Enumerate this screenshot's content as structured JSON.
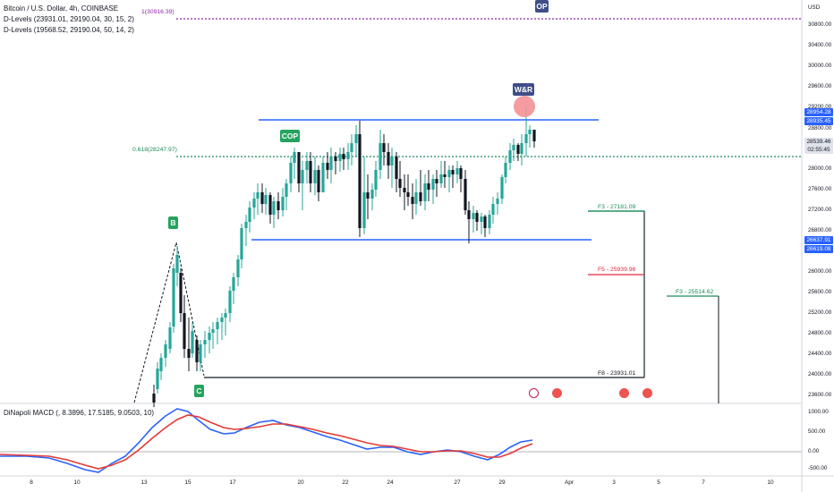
{
  "header": {
    "symbol": "Bitcoin / U.S. Dollar, 4h, COINBASE",
    "indicators": [
      "D-Levels (23931.01, 29190.04, 30, 15, 2)",
      "D-Levels (19568.52, 29190.04, 50, 14, 2)"
    ],
    "macd_label": "DiNapoli MACD (, 8.3896, 17.5185, 9.0503, 10)"
  },
  "axis": {
    "currency": "USD",
    "price_ticks": [
      "30800.00",
      "30400.00",
      "30000.00",
      "29600.00",
      "29200.00",
      "28800.00",
      "28000.00",
      "27600.00",
      "27200.00",
      "26800.00",
      "26000.00",
      "25600.00",
      "25200.00",
      "24800.00",
      "24400.00",
      "24000.00",
      "23600.00"
    ],
    "macd_ticks": [
      "1000.00",
      "500.00",
      "0.00",
      "-500.00"
    ],
    "time_ticks": [
      "8",
      "10",
      "13",
      "15",
      "17",
      "20",
      "22",
      "24",
      "27",
      "29",
      "Apr",
      "3",
      "5",
      "7",
      "10"
    ]
  },
  "price_labels": {
    "upper_1": "28954.28",
    "upper_2": "28935.45",
    "current": "28539.46",
    "countdown": "02:55:45",
    "lower_1": "26637.91",
    "lower_2": "26619.08"
  },
  "levels": {
    "op_label": "1(30916.39)",
    "fib_label": "0.618(28247.97)",
    "f3a": "F3 - 27181.09",
    "f5": "F5 - 25939.96",
    "f3b": "F3 - 25514.62",
    "f8": "F8 - 23931.01"
  },
  "markers": {
    "op": "OP",
    "wr": "W&R",
    "cop": "COP",
    "b": "B",
    "c": "C"
  },
  "colors": {
    "up": "#26a69a",
    "down": "#131722",
    "blue": "#2962ff",
    "macd_blue": "#2962ff",
    "macd_red": "#e53935",
    "green_level": "#1e8c5a",
    "red_level": "#e0263f",
    "purple": "#8e24aa",
    "op_bg": "#3f4e86",
    "cop_bg": "#26a35f"
  }
}
